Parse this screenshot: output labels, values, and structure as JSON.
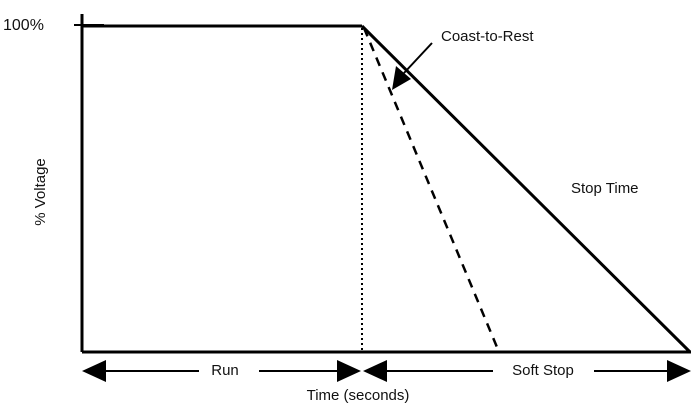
{
  "diagram": {
    "y_max_label": "100%",
    "y_axis_label": "% Voltage",
    "x_axis_label": "Time (seconds)",
    "coast_label": "Coast-to-Rest",
    "stop_time_label": "Stop Time",
    "run_label": "Run",
    "soft_stop_label": "Soft Stop",
    "line_color": "#000000"
  }
}
